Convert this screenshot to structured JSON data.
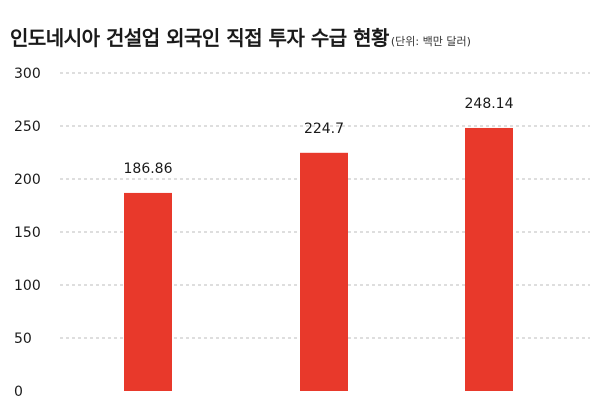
{
  "chart_data": {
    "type": "bar",
    "title": "인도네시아 건설업 외국인 직접 투자 수급 현황",
    "subtitle": "(단위: 백만 달러)",
    "xlabel": "",
    "ylabel": "",
    "categories": [
      "",
      "",
      ""
    ],
    "values": [
      186.86,
      224.7,
      248.14
    ],
    "data_labels": [
      "186.86",
      "224.7",
      "248.14"
    ],
    "ylim": [
      0,
      300
    ],
    "yticks": [
      0,
      50,
      100,
      150,
      200,
      250,
      300
    ],
    "ytick_labels": [
      "0",
      "50",
      "100",
      "150",
      "200",
      "250",
      "300"
    ],
    "grid": true,
    "grid_style": "dashed",
    "legend": "none",
    "bar_color": "#e8392b",
    "grid_color": "#bdbdbd"
  }
}
